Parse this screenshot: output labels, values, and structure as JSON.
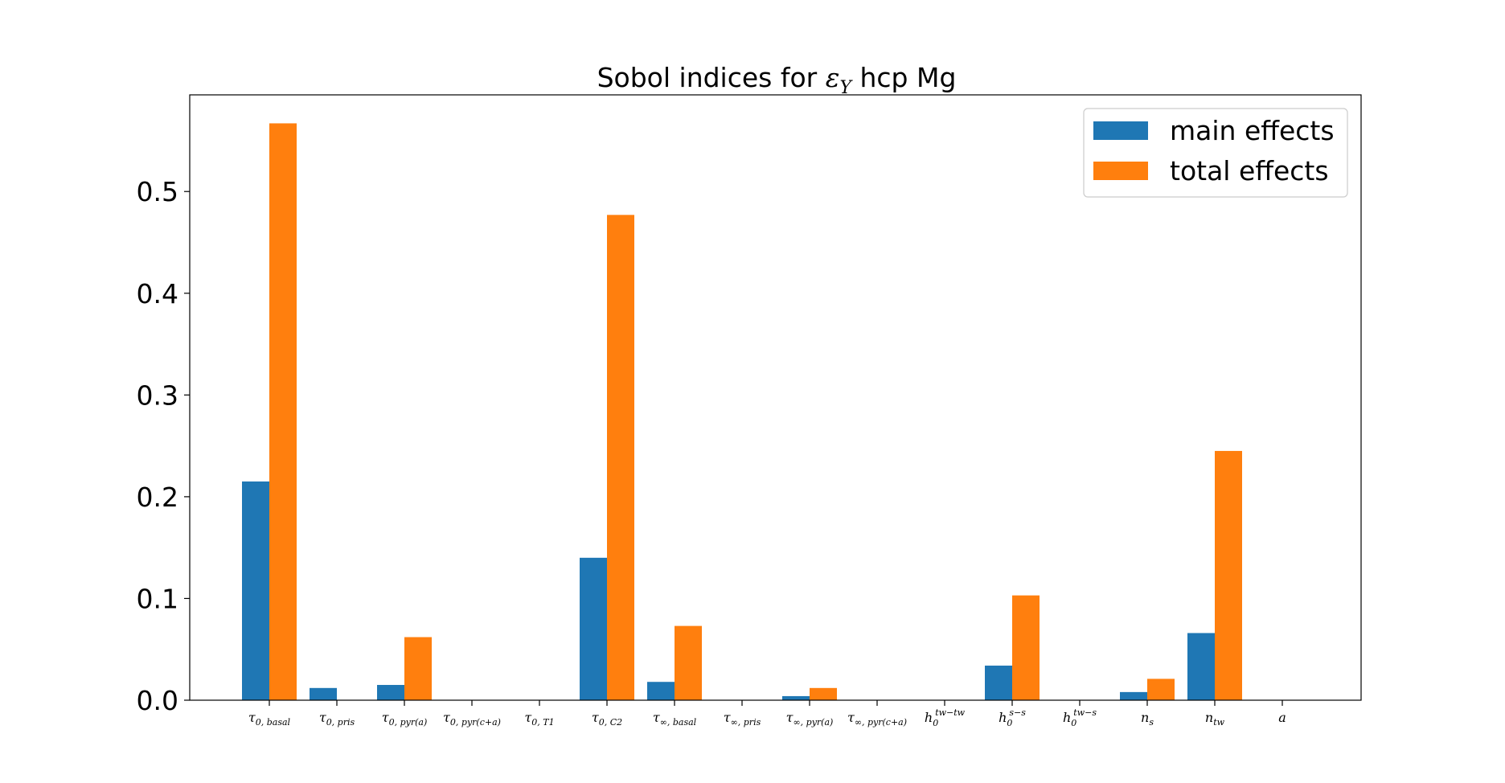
{
  "chart_data": {
    "type": "bar",
    "title": "Sobol indices for εᵧ hcp Mg",
    "title_parts": {
      "prefix": "Sobol indices for ",
      "symbol": "ε",
      "subscript": "Y",
      "suffix": " hcp Mg"
    },
    "xlabel": "",
    "ylabel": "",
    "ylim": [
      0,
      0.595
    ],
    "yticks": [
      "0.0",
      "0.1",
      "0.2",
      "0.3",
      "0.4",
      "0.5"
    ],
    "ytick_values": [
      0.0,
      0.1,
      0.2,
      0.3,
      0.4,
      0.5
    ],
    "legend_position": "top-right",
    "grid": false,
    "categories": [
      {
        "base": "τ",
        "sup": "",
        "sub": "0, basal"
      },
      {
        "base": "τ",
        "sup": "",
        "sub": "0, pris"
      },
      {
        "base": "τ",
        "sup": "",
        "sub": "0, pyr(a)"
      },
      {
        "base": "τ",
        "sup": "",
        "sub": "0, pyr(c+a)"
      },
      {
        "base": "τ",
        "sup": "",
        "sub": "0, T1"
      },
      {
        "base": "τ",
        "sup": "",
        "sub": "0, C2"
      },
      {
        "base": "τ",
        "sup": "",
        "sub": "∞, basal"
      },
      {
        "base": "τ",
        "sup": "",
        "sub": "∞, pris"
      },
      {
        "base": "τ",
        "sup": "",
        "sub": "∞, pyr(a)"
      },
      {
        "base": "τ",
        "sup": "",
        "sub": "∞, pyr(c+a)"
      },
      {
        "base": "h",
        "sup": "tw−tw",
        "sub": "0"
      },
      {
        "base": "h",
        "sup": "s−s",
        "sub": "0"
      },
      {
        "base": "h",
        "sup": "tw−s",
        "sub": "0"
      },
      {
        "base": "n",
        "sup": "",
        "sub": "s"
      },
      {
        "base": "n",
        "sup": "",
        "sub": "tw"
      },
      {
        "base": "a",
        "sup": "",
        "sub": ""
      }
    ],
    "series": [
      {
        "name": "main effects",
        "color": "#1f77b4",
        "values": [
          0.215,
          0.012,
          0.015,
          0.0,
          0.0,
          0.14,
          0.018,
          0.0,
          0.004,
          0.0,
          0.0,
          0.034,
          0.0,
          0.008,
          0.066,
          0.0
        ]
      },
      {
        "name": "total effects",
        "color": "#ff7f0e",
        "values": [
          0.567,
          0.0,
          0.062,
          0.0,
          0.0,
          0.477,
          0.073,
          0.0,
          0.012,
          0.0,
          0.0,
          0.103,
          0.0,
          0.021,
          0.245,
          0.0
        ]
      }
    ]
  }
}
